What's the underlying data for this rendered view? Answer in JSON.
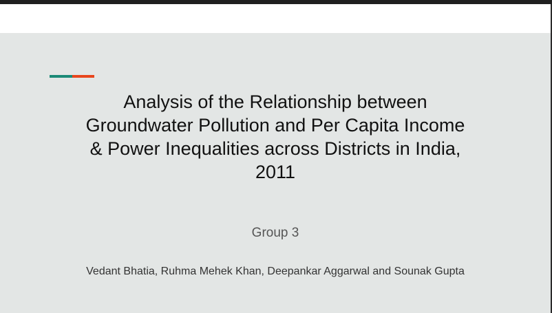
{
  "slide": {
    "title": "Analysis of the Relationship between Groundwater Pollution and Per Capita Income & Power Inequalities across Districts in India, 2011",
    "title_lines": [
      "Analysis of the Relationship between",
      "Groundwater Pollution and Per Capita Income",
      "& Power Inequalities across Districts in India,",
      "2011"
    ],
    "subtitle": "Group 3",
    "authors": "Vedant Bhatia, Ruhma Mehek Khan, Deepankar Aggarwal and Sounak Gupta"
  },
  "colors": {
    "slide_background": "#e3e6e5",
    "accent_teal": "#1b8a77",
    "accent_orange": "#e8461c",
    "frame": "#1f1f1f"
  }
}
